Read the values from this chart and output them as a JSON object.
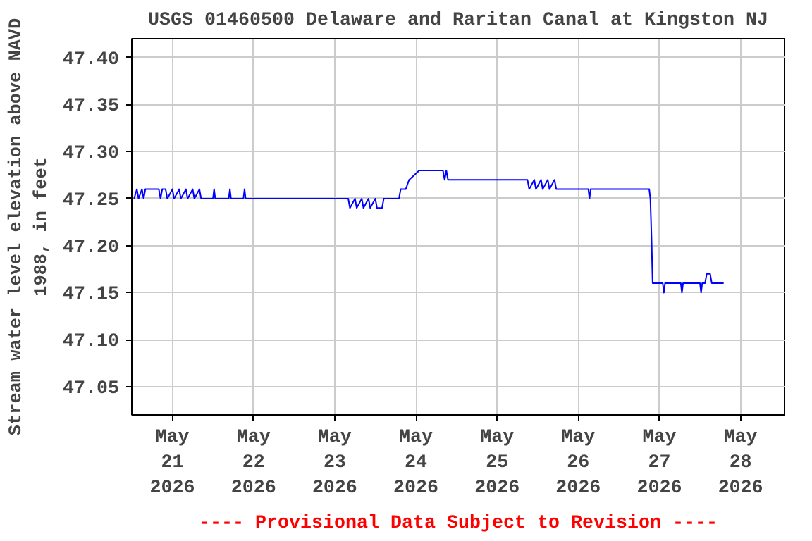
{
  "chart_data": {
    "type": "line",
    "title": "USGS 01460500 Delaware and Raritan Canal at Kingston NJ",
    "ylabel": "Stream water level elevation above NAVD\n1988, in feet",
    "annotations": [
      "---- Provisional Data Subject to Revision ----"
    ],
    "x": [
      "2026-05-20T12:40",
      "2026-05-20T13:30",
      "2026-05-20T14:00",
      "2026-05-20T15:00",
      "2026-05-20T15:30",
      "2026-05-20T16:00",
      "2026-05-20T20:00",
      "2026-05-20T20:30",
      "2026-05-20T21:00",
      "2026-05-20T22:00",
      "2026-05-20T22:30",
      "2026-05-21T00:00",
      "2026-05-21T00:30",
      "2026-05-21T02:00",
      "2026-05-21T02:30",
      "2026-05-21T04:00",
      "2026-05-21T04:30",
      "2026-05-21T06:00",
      "2026-05-21T06:30",
      "2026-05-21T08:00",
      "2026-05-21T08:30",
      "2026-05-21T12:00",
      "2026-05-21T12:20",
      "2026-05-21T12:40",
      "2026-05-21T16:40",
      "2026-05-21T17:00",
      "2026-05-21T17:20",
      "2026-05-21T21:00",
      "2026-05-21T21:20",
      "2026-05-21T21:40",
      "2026-05-23T04:00",
      "2026-05-23T04:30",
      "2026-05-23T06:00",
      "2026-05-23T06:30",
      "2026-05-23T08:00",
      "2026-05-23T08:30",
      "2026-05-23T10:00",
      "2026-05-23T10:30",
      "2026-05-23T12:00",
      "2026-05-23T12:30",
      "2026-05-23T14:00",
      "2026-05-23T14:30",
      "2026-05-23T19:00",
      "2026-05-23T19:30",
      "2026-05-23T21:00",
      "2026-05-23T22:00",
      "2026-05-24T01:00",
      "2026-05-24T08:00",
      "2026-05-24T08:30",
      "2026-05-24T09:00",
      "2026-05-24T09:30",
      "2026-05-25T09:00",
      "2026-05-25T09:30",
      "2026-05-25T11:00",
      "2026-05-25T11:30",
      "2026-05-25T13:00",
      "2026-05-25T13:30",
      "2026-05-25T15:00",
      "2026-05-25T15:30",
      "2026-05-25T17:00",
      "2026-05-25T17:30",
      "2026-05-26T03:00",
      "2026-05-26T03:20",
      "2026-05-26T03:40",
      "2026-05-26T21:00",
      "2026-05-26T21:20",
      "2026-05-26T21:40",
      "2026-05-26T22:00",
      "2026-05-27T01:00",
      "2026-05-27T01:20",
      "2026-05-27T01:40",
      "2026-05-27T06:20",
      "2026-05-27T06:40",
      "2026-05-27T07:00",
      "2026-05-27T12:00",
      "2026-05-27T12:20",
      "2026-05-27T12:40",
      "2026-05-27T13:30",
      "2026-05-27T14:00",
      "2026-05-27T15:00",
      "2026-05-27T15:30",
      "2026-05-27T19:00"
    ],
    "values": [
      47.25,
      47.26,
      47.25,
      47.26,
      47.25,
      47.26,
      47.26,
      47.25,
      47.26,
      47.26,
      47.25,
      47.26,
      47.25,
      47.26,
      47.25,
      47.26,
      47.25,
      47.26,
      47.25,
      47.26,
      47.25,
      47.25,
      47.26,
      47.25,
      47.25,
      47.26,
      47.25,
      47.25,
      47.26,
      47.25,
      47.25,
      47.24,
      47.25,
      47.24,
      47.25,
      47.24,
      47.25,
      47.24,
      47.25,
      47.24,
      47.24,
      47.25,
      47.25,
      47.26,
      47.26,
      47.27,
      47.28,
      47.28,
      47.27,
      47.28,
      47.27,
      47.27,
      47.26,
      47.27,
      47.26,
      47.27,
      47.26,
      47.27,
      47.26,
      47.27,
      47.26,
      47.26,
      47.25,
      47.26,
      47.26,
      47.25,
      47.21,
      47.16,
      47.16,
      47.15,
      47.16,
      47.16,
      47.15,
      47.16,
      47.16,
      47.15,
      47.16,
      47.16,
      47.17,
      47.17,
      47.16,
      47.16
    ],
    "color": "#0000ff",
    "line_style": "solid",
    "marker": "none",
    "xlim": [
      "2026-05-20T12:00",
      "2026-05-28T13:00"
    ],
    "xticks": [
      {
        "value": "2026-05-21",
        "label": "May\n21\n2026"
      },
      {
        "value": "2026-05-22",
        "label": "May\n22\n2026"
      },
      {
        "value": "2026-05-23",
        "label": "May\n23\n2026"
      },
      {
        "value": "2026-05-24",
        "label": "May\n24\n2026"
      },
      {
        "value": "2026-05-25",
        "label": "May\n25\n2026"
      },
      {
        "value": "2026-05-26",
        "label": "May\n26\n2026"
      },
      {
        "value": "2026-05-27",
        "label": "May\n27\n2026"
      },
      {
        "value": "2026-05-28",
        "label": "May\n28\n2026"
      }
    ],
    "ylim": [
      47.02,
      47.42
    ],
    "yticks": [
      {
        "value": 47.05,
        "label": "47.05"
      },
      {
        "value": 47.1,
        "label": "47.10"
      },
      {
        "value": 47.15,
        "label": "47.15"
      },
      {
        "value": 47.2,
        "label": "47.20"
      },
      {
        "value": 47.25,
        "label": "47.25"
      },
      {
        "value": 47.3,
        "label": "47.30"
      },
      {
        "value": 47.35,
        "label": "47.35"
      },
      {
        "value": 47.4,
        "label": "47.40"
      }
    ],
    "grid": true
  }
}
